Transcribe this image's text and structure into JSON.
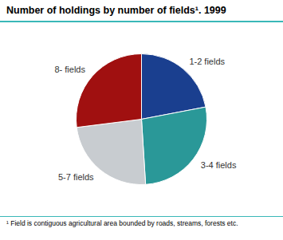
{
  "chart_data": {
    "type": "pie",
    "title": "Number of holdings by number of fields¹. 1999",
    "footnote": "¹ Field is contiguous agricultural area bounded by roads, streams, forests etc.",
    "categories": [
      "1-2 fields",
      "3-4 fields",
      "5-7 fields",
      "8- fields"
    ],
    "values": [
      22,
      27,
      24,
      27
    ],
    "colors": [
      "#1a3f8f",
      "#2a9898",
      "#c8ccd0",
      "#a01010"
    ]
  }
}
